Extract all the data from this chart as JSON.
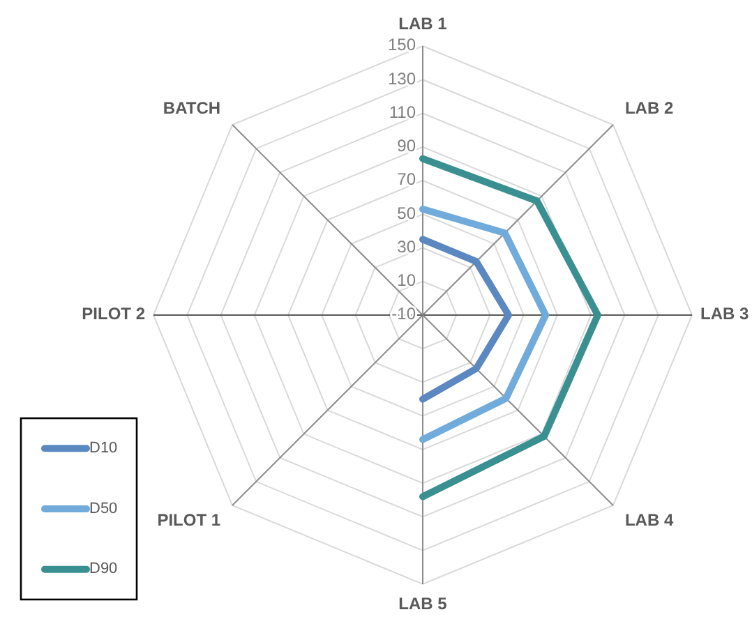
{
  "chart_data": {
    "type": "radar",
    "categories": [
      "LAB 1",
      "LAB 2",
      "LAB 3",
      "LAB 4",
      "LAB 5",
      "PILOT 1",
      "PILOT 2",
      "BATCH"
    ],
    "series": [
      {
        "name": "D10",
        "color": "#5b88c1",
        "values": [
          35,
          35,
          41,
          35,
          40,
          null,
          null,
          null
        ]
      },
      {
        "name": "D50",
        "color": "#71abdb",
        "values": [
          53,
          59,
          63,
          60,
          64,
          null,
          null,
          null
        ]
      },
      {
        "name": "D90",
        "color": "#3a9090",
        "values": [
          83,
          86,
          94,
          92,
          98,
          null,
          null,
          null
        ]
      }
    ],
    "ylim": [
      -10,
      150
    ],
    "yticks": [
      -10,
      10,
      30,
      50,
      70,
      90,
      110,
      130,
      150
    ],
    "grid": true,
    "legend": "bottom left",
    "line_style": "solid"
  }
}
